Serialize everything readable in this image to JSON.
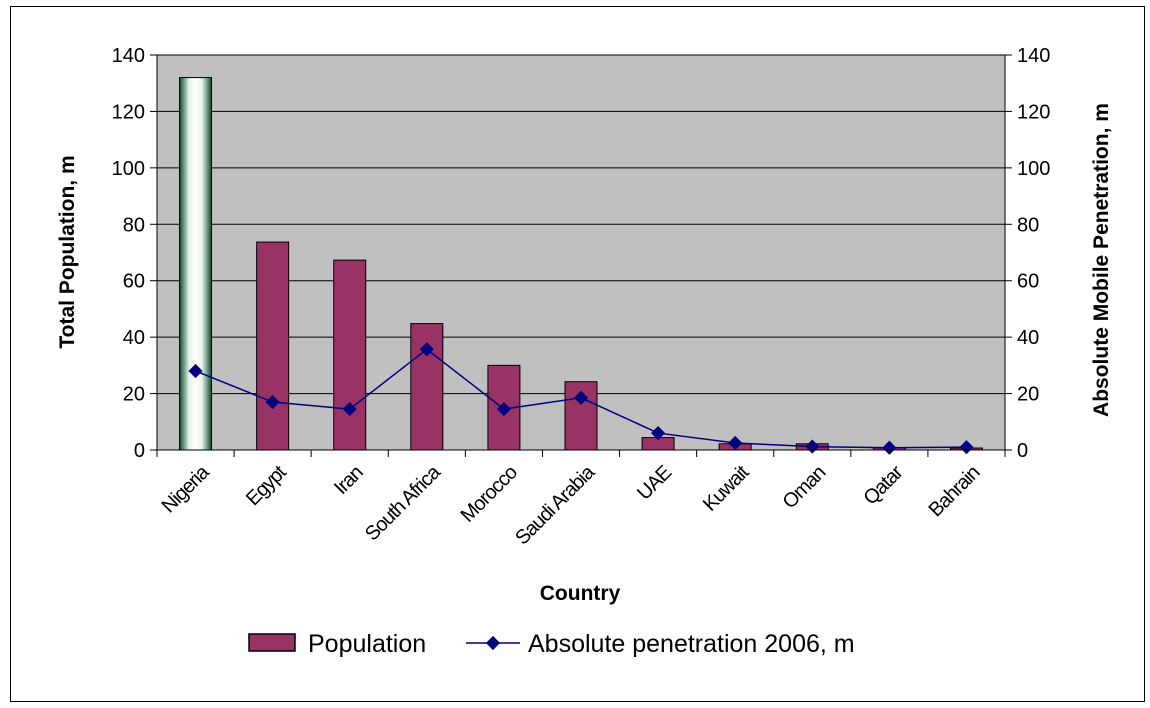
{
  "chart_data": {
    "type": "bar",
    "categories": [
      "Nigeria",
      "Egypt",
      "Iran",
      "South Africa",
      "Morocco",
      "Saudi Arabia",
      "UAE",
      "Kuwait",
      "Oman",
      "Qatar",
      "Bahrain"
    ],
    "series": [
      {
        "name": "Population",
        "type": "bar",
        "axis": "left",
        "values": [
          132,
          73.7,
          67.3,
          44.8,
          30,
          24.2,
          4.4,
          2.2,
          2.2,
          0.8,
          0.7
        ],
        "color": "#993366"
      },
      {
        "name": "Absolute penetration 2006, m",
        "type": "line",
        "axis": "right",
        "values": [
          28,
          17,
          14.5,
          35.7,
          14.5,
          18.5,
          6,
          2.5,
          1.2,
          0.8,
          1
        ],
        "color": "#000080"
      }
    ],
    "highlight": {
      "category": "Nigeria",
      "series": "Population",
      "style": "gradient-green"
    },
    "xlabel": "Country",
    "ylabel": "Total Population, m",
    "y2label": "Absolute Mobile Penetration, m",
    "ylim": [
      0,
      140
    ],
    "y2lim": [
      0,
      140
    ],
    "yticks": [
      0,
      20,
      40,
      60,
      80,
      100,
      120,
      140
    ],
    "plot_background": "#c0c0c0",
    "grid": true,
    "legend": "bottom"
  }
}
